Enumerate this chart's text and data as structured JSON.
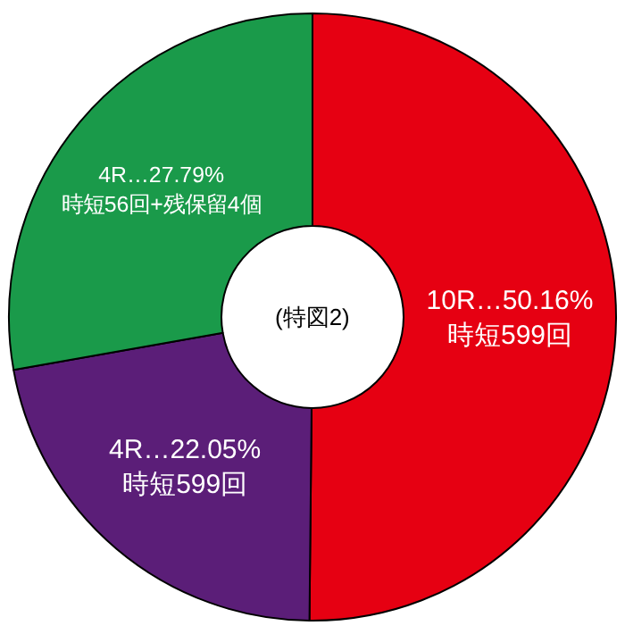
{
  "chart_data": {
    "type": "donut",
    "categories": [
      "時短599回",
      "時短599回",
      "時短56回+残保留4個"
    ],
    "values": [
      50.16,
      22.05,
      27.79
    ],
    "value_labels": [
      "10R…50.16%",
      "4R…22.05%",
      "4R…27.79%"
    ],
    "colors": [
      "#e60012",
      "#5b1e78",
      "#1a9a4a"
    ],
    "annotations": [
      "(特図2)"
    ],
    "legend": false
  }
}
